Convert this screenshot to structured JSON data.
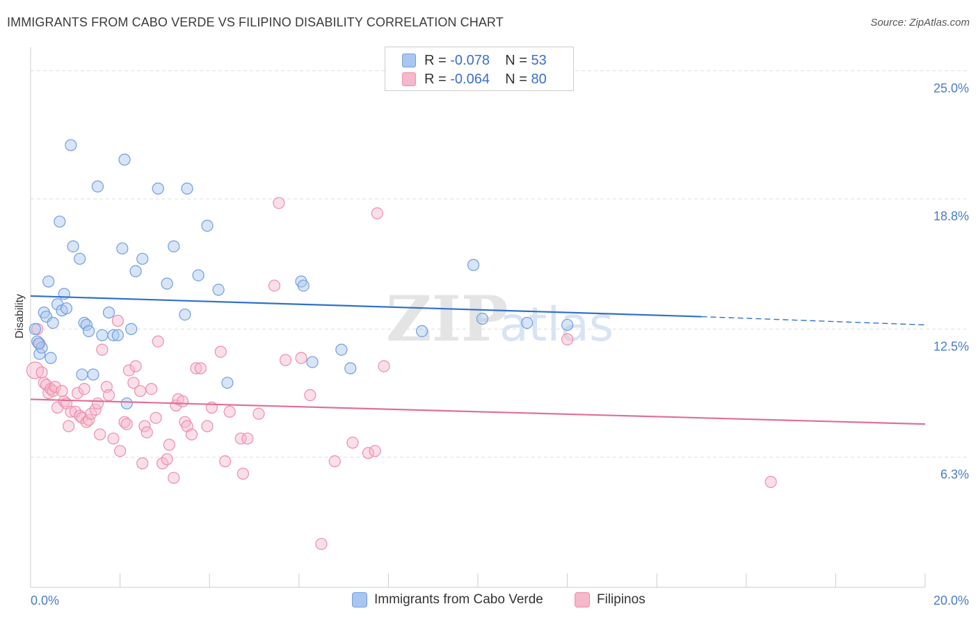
{
  "title": "IMMIGRANTS FROM CABO VERDE VS FILIPINO DISABILITY CORRELATION CHART",
  "source": "Source: ZipAtlas.com",
  "watermark": {
    "zip": "ZIP",
    "atlas": "atlas"
  },
  "legend": {
    "rows": [
      {
        "r_label": "R =",
        "r_value": "-0.078",
        "n_label": "N =",
        "n_value": "53"
      },
      {
        "r_label": "R =",
        "r_value": "-0.064",
        "n_label": "N =",
        "n_value": "80"
      }
    ]
  },
  "bottom_legend": {
    "series1": "Immigrants from Cabo Verde",
    "series2": "Filipinos"
  },
  "colors": {
    "blue_fill": "#a9c6ee",
    "blue_stroke": "#6f9ee0",
    "blue_line": "#2f6fce",
    "pink_fill": "#f6b8cb",
    "pink_stroke": "#ec8eab",
    "pink_line": "#e06f97",
    "tick_text": "#4a7cc9",
    "grid": "#dddddd"
  },
  "chart_data": {
    "type": "scatter",
    "title": "IMMIGRANTS FROM CABO VERDE VS FILIPINO DISABILITY CORRELATION CHART",
    "xlabel": "",
    "ylabel": "Disability",
    "xlim": [
      0,
      20
    ],
    "ylim": [
      0,
      25.8
    ],
    "x_tick_labels": [
      "0.0%",
      "20.0%"
    ],
    "y_ticks": [
      6.3,
      12.5,
      18.8,
      25.0
    ],
    "y_tick_labels": [
      "6.3%",
      "12.5%",
      "18.8%",
      "25.0%"
    ],
    "series": [
      {
        "name": "Immigrants from Cabo Verde",
        "color": "blue",
        "R": -0.078,
        "N": 53,
        "trend": {
          "x0": 0,
          "y0": 14.1,
          "x1": 15.0,
          "y1": 13.1,
          "dash_to_x": 20.0,
          "dash_to_y": 12.7
        },
        "points": [
          [
            0.1,
            12.5
          ],
          [
            0.15,
            11.9
          ],
          [
            0.2,
            11.3
          ],
          [
            0.25,
            11.6
          ],
          [
            0.3,
            13.3
          ],
          [
            0.35,
            13.1
          ],
          [
            0.4,
            14.8
          ],
          [
            0.45,
            11.1
          ],
          [
            0.5,
            12.8
          ],
          [
            0.6,
            13.7
          ],
          [
            0.65,
            17.7
          ],
          [
            0.7,
            13.4
          ],
          [
            0.75,
            14.2
          ],
          [
            0.8,
            13.5
          ],
          [
            0.9,
            21.4
          ],
          [
            0.95,
            16.5
          ],
          [
            1.1,
            15.9
          ],
          [
            1.15,
            10.3
          ],
          [
            1.2,
            12.8
          ],
          [
            1.25,
            12.7
          ],
          [
            1.3,
            12.4
          ],
          [
            1.4,
            10.3
          ],
          [
            1.5,
            19.4
          ],
          [
            1.6,
            12.2
          ],
          [
            1.75,
            13.3
          ],
          [
            1.85,
            12.2
          ],
          [
            1.95,
            12.2
          ],
          [
            2.05,
            16.4
          ],
          [
            2.1,
            20.7
          ],
          [
            2.15,
            8.9
          ],
          [
            2.25,
            12.5
          ],
          [
            2.35,
            15.3
          ],
          [
            2.5,
            15.9
          ],
          [
            2.85,
            19.3
          ],
          [
            3.05,
            14.7
          ],
          [
            3.2,
            16.5
          ],
          [
            3.45,
            13.2
          ],
          [
            3.5,
            19.3
          ],
          [
            3.75,
            15.1
          ],
          [
            3.95,
            17.5
          ],
          [
            4.2,
            14.4
          ],
          [
            4.4,
            9.9
          ],
          [
            6.05,
            14.8
          ],
          [
            6.1,
            14.6
          ],
          [
            6.3,
            10.9
          ],
          [
            6.95,
            11.5
          ],
          [
            7.15,
            10.6
          ],
          [
            8.75,
            12.4
          ],
          [
            9.9,
            15.6
          ],
          [
            10.1,
            13.0
          ],
          [
            11.1,
            12.8
          ],
          [
            12.0,
            12.7
          ],
          [
            0.18,
            11.8
          ]
        ]
      },
      {
        "name": "Filipinos",
        "color": "pink",
        "R": -0.064,
        "N": 80,
        "trend": {
          "x0": 0,
          "y0": 9.1,
          "x1": 20.0,
          "y1": 7.9
        },
        "points": [
          [
            0.1,
            10.5
          ],
          [
            0.15,
            12.5
          ],
          [
            0.2,
            11.8
          ],
          [
            0.25,
            10.4
          ],
          [
            0.3,
            9.9
          ],
          [
            0.35,
            9.8
          ],
          [
            0.4,
            9.4
          ],
          [
            0.45,
            9.6
          ],
          [
            0.5,
            9.5
          ],
          [
            0.55,
            9.7
          ],
          [
            0.6,
            8.7
          ],
          [
            0.7,
            9.5
          ],
          [
            0.75,
            9.0
          ],
          [
            0.8,
            8.9
          ],
          [
            0.85,
            7.8
          ],
          [
            0.9,
            8.5
          ],
          [
            1.0,
            8.5
          ],
          [
            1.05,
            9.4
          ],
          [
            1.1,
            8.3
          ],
          [
            1.15,
            8.2
          ],
          [
            1.2,
            9.6
          ],
          [
            1.25,
            8.0
          ],
          [
            1.3,
            8.1
          ],
          [
            1.35,
            8.4
          ],
          [
            1.45,
            8.6
          ],
          [
            1.5,
            8.9
          ],
          [
            1.6,
            11.5
          ],
          [
            1.55,
            7.4
          ],
          [
            1.7,
            9.7
          ],
          [
            1.75,
            9.3
          ],
          [
            1.85,
            7.2
          ],
          [
            1.95,
            12.9
          ],
          [
            2.0,
            6.6
          ],
          [
            2.1,
            8.0
          ],
          [
            2.15,
            7.9
          ],
          [
            2.2,
            10.5
          ],
          [
            2.3,
            9.9
          ],
          [
            2.35,
            10.7
          ],
          [
            2.45,
            9.5
          ],
          [
            2.5,
            6.0
          ],
          [
            2.55,
            7.8
          ],
          [
            2.6,
            7.5
          ],
          [
            2.7,
            9.6
          ],
          [
            2.8,
            8.2
          ],
          [
            2.85,
            11.9
          ],
          [
            2.95,
            6.0
          ],
          [
            3.05,
            6.2
          ],
          [
            3.1,
            6.9
          ],
          [
            3.2,
            5.3
          ],
          [
            3.25,
            8.8
          ],
          [
            3.3,
            9.1
          ],
          [
            3.4,
            9.0
          ],
          [
            3.45,
            8.0
          ],
          [
            3.5,
            7.8
          ],
          [
            3.6,
            7.4
          ],
          [
            3.7,
            10.6
          ],
          [
            3.8,
            10.6
          ],
          [
            3.95,
            7.8
          ],
          [
            4.05,
            8.7
          ],
          [
            4.25,
            11.4
          ],
          [
            4.35,
            6.1
          ],
          [
            4.45,
            8.5
          ],
          [
            4.7,
            7.2
          ],
          [
            4.75,
            5.5
          ],
          [
            4.85,
            7.2
          ],
          [
            5.1,
            8.4
          ],
          [
            5.45,
            14.6
          ],
          [
            5.55,
            18.6
          ],
          [
            5.7,
            11.0
          ],
          [
            6.05,
            11.1
          ],
          [
            6.25,
            9.3
          ],
          [
            6.5,
            2.1
          ],
          [
            6.8,
            6.1
          ],
          [
            7.2,
            7.0
          ],
          [
            7.55,
            6.5
          ],
          [
            7.7,
            6.6
          ],
          [
            7.75,
            18.1
          ],
          [
            7.9,
            10.7
          ],
          [
            12.0,
            12.0
          ],
          [
            16.55,
            5.1
          ]
        ]
      }
    ]
  }
}
